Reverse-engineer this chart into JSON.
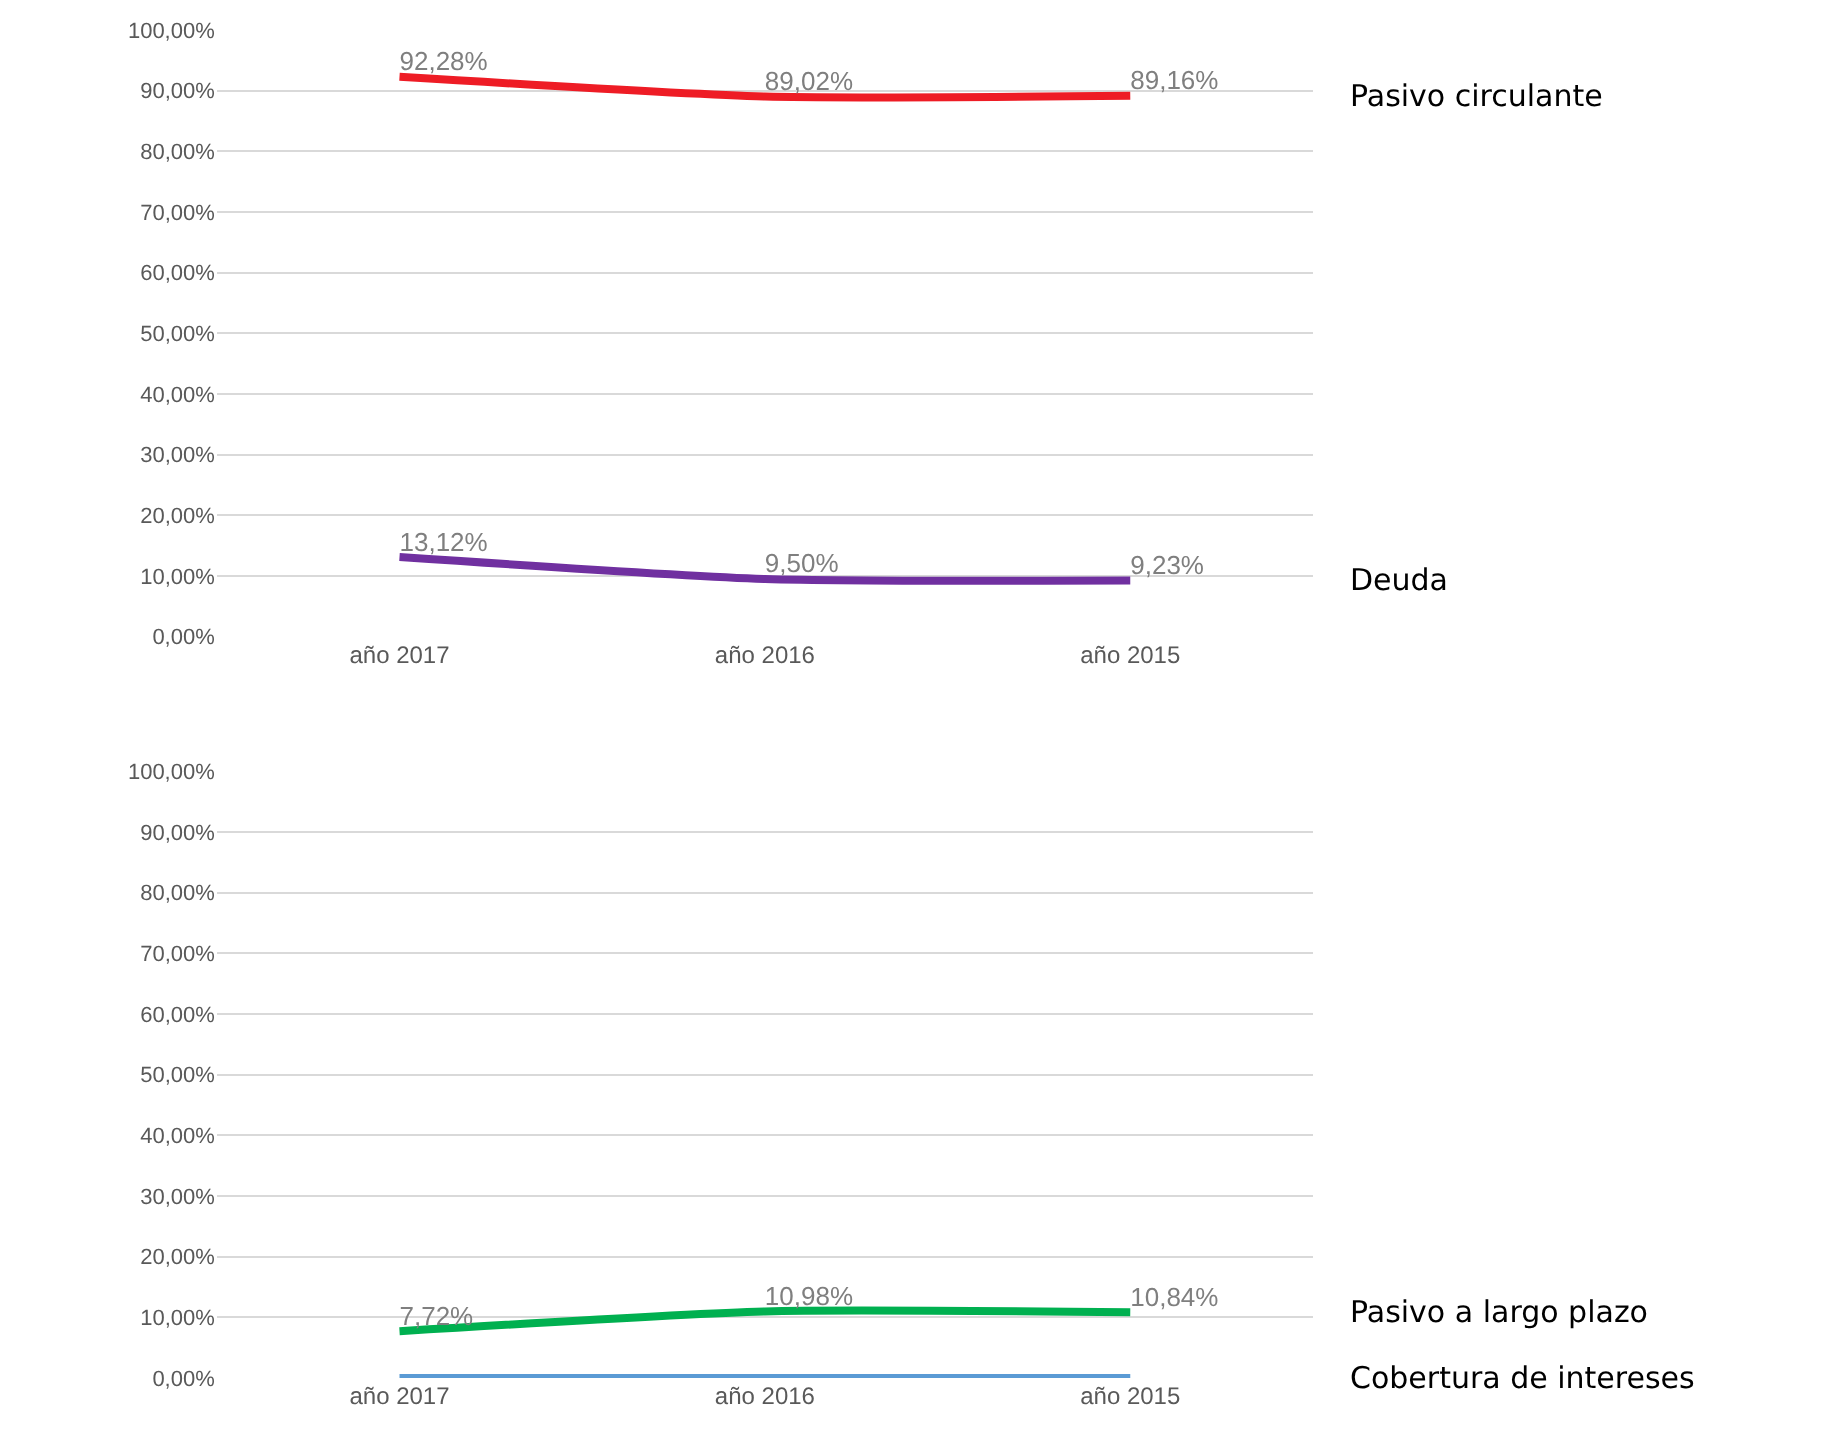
{
  "chart_data": [
    {
      "type": "line",
      "categories": [
        "año 2017",
        "año 2016",
        "año 2015"
      ],
      "ylim": [
        0,
        100
      ],
      "yticks": [
        {
          "value": 0,
          "label": "0,00%"
        },
        {
          "value": 10,
          "label": "10,00%"
        },
        {
          "value": 20,
          "label": "20,00%"
        },
        {
          "value": 30,
          "label": "30,00%"
        },
        {
          "value": 40,
          "label": "40,00%"
        },
        {
          "value": 50,
          "label": "50,00%"
        },
        {
          "value": 60,
          "label": "60,00%"
        },
        {
          "value": 70,
          "label": "70,00%"
        },
        {
          "value": 80,
          "label": "80,00%"
        },
        {
          "value": 90,
          "label": "90,00%"
        },
        {
          "value": 100,
          "label": "100,00%"
        }
      ],
      "grid": "y",
      "legend": false,
      "marker": "none",
      "series": [
        {
          "name": "Pasivo circulante",
          "color": "#ee1c25",
          "values": [
            92.28,
            89.02,
            89.16
          ],
          "value_labels": [
            "92,28%",
            "89,02%",
            "89,16%"
          ]
        },
        {
          "name": "Deuda",
          "color": "#7030a0",
          "values": [
            13.12,
            9.5,
            9.23
          ],
          "value_labels": [
            "13,12%",
            "9,50%",
            "9,23%"
          ]
        }
      ]
    },
    {
      "type": "line",
      "categories": [
        "año 2017",
        "año 2016",
        "año 2015"
      ],
      "ylim": [
        0,
        100
      ],
      "yticks": [
        {
          "value": 0,
          "label": "0,00%"
        },
        {
          "value": 10,
          "label": "10,00%"
        },
        {
          "value": 20,
          "label": "20,00%"
        },
        {
          "value": 30,
          "label": "30,00%"
        },
        {
          "value": 40,
          "label": "40,00%"
        },
        {
          "value": 50,
          "label": "50,00%"
        },
        {
          "value": 60,
          "label": "60,00%"
        },
        {
          "value": 70,
          "label": "70,00%"
        },
        {
          "value": 80,
          "label": "80,00%"
        },
        {
          "value": 90,
          "label": "90,00%"
        },
        {
          "value": 100,
          "label": "100,00%"
        }
      ],
      "grid": "y",
      "legend": false,
      "marker": "none",
      "series": [
        {
          "name": "Pasivo a largo plazo",
          "color": "#00b050",
          "values": [
            7.72,
            10.98,
            10.84
          ],
          "value_labels": [
            "7,72%",
            "10,98%",
            "10,84%"
          ]
        },
        {
          "name": "Cobertura de intereses",
          "color": "#5b9bd5",
          "values": [
            0,
            0,
            0
          ]
        }
      ]
    }
  ]
}
